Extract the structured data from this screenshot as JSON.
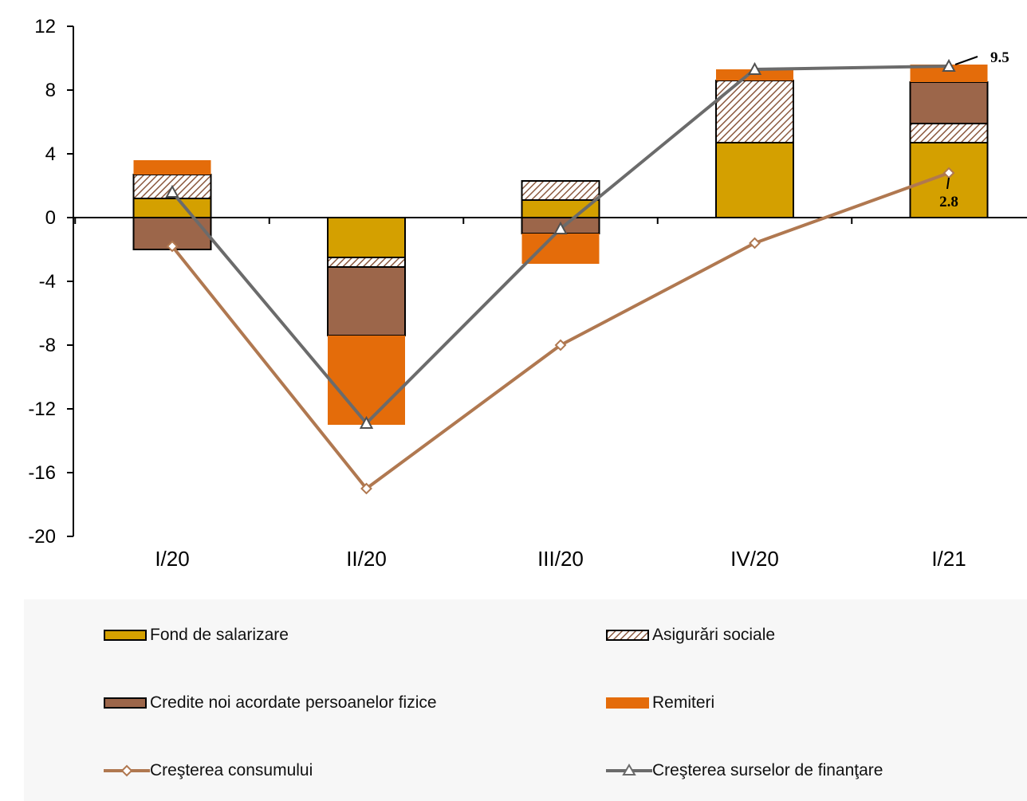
{
  "chart_data": {
    "type": "bar",
    "stacked": true,
    "categories": [
      "I/20",
      "II/20",
      "III/20",
      "IV/20",
      "I/21"
    ],
    "ylim": [
      -20,
      12
    ],
    "yticks": [
      12,
      8,
      4,
      0,
      -4,
      -8,
      -12,
      -16,
      -20
    ],
    "grid": false,
    "series": [
      {
        "name": "Fond de salarizare",
        "kind": "bar",
        "color": "#d4a000",
        "pattern": "none",
        "values": [
          1.2,
          -2.5,
          1.1,
          4.7,
          4.7
        ]
      },
      {
        "name": "Asigurări sociale",
        "kind": "bar",
        "color": "#8c5a40",
        "pattern": "hatch",
        "values": [
          1.5,
          -0.6,
          1.2,
          3.9,
          1.2
        ]
      },
      {
        "name": "Credite noi acordate persoanelor fizice",
        "kind": "bar",
        "color": "#9c664a",
        "pattern": "none",
        "values": [
          -2.0,
          -4.3,
          -1.0,
          0.0,
          2.6
        ]
      },
      {
        "name": "Remiteri",
        "kind": "bar",
        "color": "#e46c0a",
        "pattern": "none",
        "values": [
          0.9,
          -5.6,
          -1.9,
          0.7,
          1.1
        ]
      },
      {
        "name": "Creşterea consumului",
        "kind": "line",
        "color": "#b07850",
        "marker": "diamond",
        "values": [
          -1.8,
          -17.0,
          -8.0,
          -1.6,
          2.8
        ]
      },
      {
        "name": "Creşterea surselor de finanţare",
        "kind": "line",
        "color": "#6b6b6b",
        "marker": "triangle",
        "values": [
          1.6,
          -12.9,
          -0.7,
          9.3,
          9.5
        ]
      }
    ],
    "annotations": [
      {
        "text": "9.5",
        "series": "Creşterea surselor de finanţare",
        "category": "I/21"
      },
      {
        "text": "2.8",
        "series": "Creşterea consumului",
        "category": "I/21"
      }
    ],
    "legend_position": "bottom"
  }
}
